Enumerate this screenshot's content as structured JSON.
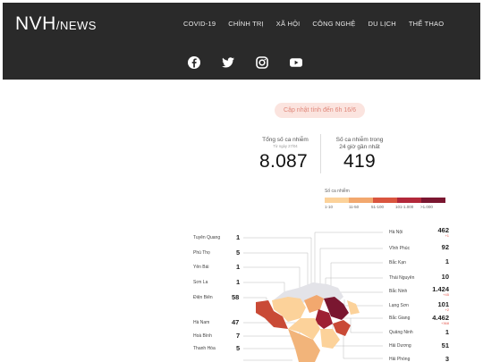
{
  "header": {
    "logo_main": "NVH",
    "logo_sub": "/NEWS",
    "nav": [
      "COVID-19",
      "CHÍNH TRỊ",
      "XÃ HỘI",
      "CÔNG NGHỆ",
      "DU LỊCH",
      "THỂ THAO"
    ],
    "social_icons": [
      "facebook-icon",
      "twitter-icon",
      "instagram-icon",
      "youtube-icon"
    ]
  },
  "update_notice": "Cập nhật tính đến 6h 16/6",
  "stats": {
    "total_label": "Tổng số ca nhiễm",
    "total_sub": "Từ ngày 27/04",
    "total_value": "8.087",
    "recent_label_1": "Số ca nhiễm trong",
    "recent_label_2": "24 giờ gần nhất",
    "recent_value": "419"
  },
  "legend": {
    "title": "Số ca nhiễm",
    "labels": [
      "1-10",
      "11-50",
      "51-100",
      "101-1.000",
      ">1.000"
    ],
    "colors": [
      "#fcd29a",
      "#f2a86e",
      "#d9553e",
      "#b2283a",
      "#7a1630"
    ]
  },
  "provinces_left": [
    {
      "name": "Tuyên Quang",
      "value": "1"
    },
    {
      "name": "Phú Thọ",
      "value": "5"
    },
    {
      "name": "Yên Bái",
      "value": "1"
    },
    {
      "name": "Sơn La",
      "value": "1"
    },
    {
      "name": "Điện Biên",
      "value": "58"
    },
    {
      "name": "Hà Nam",
      "value": "47"
    },
    {
      "name": "Hoà Bình",
      "value": "7"
    },
    {
      "name": "Thanh Hóa",
      "value": "5"
    }
  ],
  "provinces_right": [
    {
      "name": "Hà Nội",
      "value": "462",
      "delta": "+1"
    },
    {
      "name": "Vĩnh Phúc",
      "value": "92",
      "delta": ""
    },
    {
      "name": "Bắc Kạn",
      "value": "1",
      "delta": ""
    },
    {
      "name": "Thái Nguyên",
      "value": "10",
      "delta": ""
    },
    {
      "name": "Bắc Ninh",
      "value": "1.424",
      "delta": "+45"
    },
    {
      "name": "Lạng Sơn",
      "value": "101",
      "delta": "+2"
    },
    {
      "name": "Bắc Giang",
      "value": "4.462",
      "delta": "+368"
    },
    {
      "name": "Quảng Ninh",
      "value": "1",
      "delta": ""
    },
    {
      "name": "Hải Dương",
      "value": "51",
      "delta": ""
    },
    {
      "name": "Hải Phòng",
      "value": "3",
      "delta": ""
    }
  ]
}
